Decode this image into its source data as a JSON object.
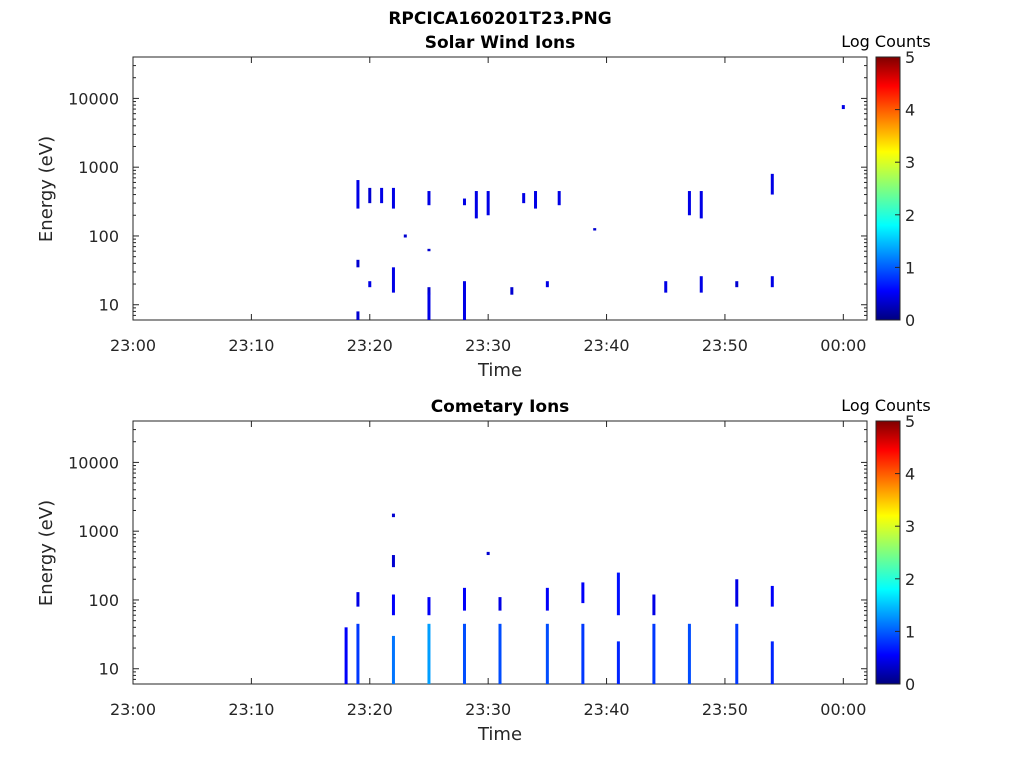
{
  "figure_title": "RPCICA160201T23.PNG",
  "chart_data": [
    {
      "type": "heatmap",
      "title": "Solar Wind Ions",
      "xlabel": "Time",
      "ylabel": "Energy (eV)",
      "yscale": "log",
      "xlim": [
        "23:00",
        "00:02"
      ],
      "ylim": [
        6,
        40000
      ],
      "xticks": [
        "23:00",
        "23:10",
        "23:20",
        "23:30",
        "23:40",
        "23:50",
        "00:00"
      ],
      "yticks": [
        "10",
        "100",
        "1000",
        "10000"
      ],
      "colorbar": {
        "label": "Log Counts",
        "range": [
          0,
          5
        ],
        "ticks": [
          "0",
          "1",
          "2",
          "3",
          "4",
          "5"
        ],
        "colormap": "jet"
      },
      "grid": false,
      "cells": [
        {
          "t": "23:19",
          "e": 6,
          "e2": 8,
          "c": 0.4
        },
        {
          "t": "23:19",
          "e": 35,
          "e2": 45,
          "c": 0.4
        },
        {
          "t": "23:19",
          "e": 250,
          "e2": 650,
          "c": 0.5
        },
        {
          "t": "23:20",
          "e": 18,
          "e2": 22,
          "c": 0.5
        },
        {
          "t": "23:20",
          "e": 300,
          "e2": 500,
          "c": 0.4
        },
        {
          "t": "23:21",
          "e": 300,
          "e2": 500,
          "c": 0.5
        },
        {
          "t": "23:22",
          "e": 15,
          "e2": 35,
          "c": 0.5
        },
        {
          "t": "23:22",
          "e": 250,
          "e2": 500,
          "c": 0.5
        },
        {
          "t": "23:23",
          "e": 95,
          "e2": 105,
          "c": 0.4
        },
        {
          "t": "23:25",
          "e": 14,
          "e2": 18,
          "c": 0.4
        },
        {
          "t": "23:25",
          "e": 280,
          "e2": 450,
          "c": 0.5
        },
        {
          "t": "23:25",
          "e": 6,
          "e2": 15,
          "c": 0.5
        },
        {
          "t": "23:25",
          "e": 60,
          "e2": 65,
          "c": 0.4
        },
        {
          "t": "23:28",
          "e": 6,
          "e2": 22,
          "c": 0.5
        },
        {
          "t": "23:28",
          "e": 280,
          "e2": 350,
          "c": 0.5
        },
        {
          "t": "23:29",
          "e": 180,
          "e2": 450,
          "c": 0.5
        },
        {
          "t": "23:30",
          "e": 200,
          "e2": 450,
          "c": 0.5
        },
        {
          "t": "23:32",
          "e": 14,
          "e2": 18,
          "c": 0.4
        },
        {
          "t": "23:33",
          "e": 300,
          "e2": 420,
          "c": 0.5
        },
        {
          "t": "23:34",
          "e": 250,
          "e2": 450,
          "c": 0.5
        },
        {
          "t": "23:35",
          "e": 18,
          "e2": 22,
          "c": 0.5
        },
        {
          "t": "23:36",
          "e": 280,
          "e2": 450,
          "c": 0.5
        },
        {
          "t": "23:39",
          "e": 120,
          "e2": 130,
          "c": 0.4
        },
        {
          "t": "23:45",
          "e": 15,
          "e2": 22,
          "c": 0.5
        },
        {
          "t": "23:47",
          "e": 200,
          "e2": 450,
          "c": 0.5
        },
        {
          "t": "23:48",
          "e": 15,
          "e2": 26,
          "c": 0.5
        },
        {
          "t": "23:48",
          "e": 180,
          "e2": 450,
          "c": 0.5
        },
        {
          "t": "23:51",
          "e": 18,
          "e2": 22,
          "c": 0.4
        },
        {
          "t": "23:54",
          "e": 18,
          "e2": 26,
          "c": 0.5
        },
        {
          "t": "23:54",
          "e": 400,
          "e2": 800,
          "c": 0.5
        },
        {
          "t": "00:00",
          "e": 7000,
          "e2": 8000,
          "c": 0.5
        }
      ]
    },
    {
      "type": "heatmap",
      "title": "Cometary Ions",
      "xlabel": "Time",
      "ylabel": "Energy (eV)",
      "yscale": "log",
      "xlim": [
        "23:00",
        "00:02"
      ],
      "ylim": [
        6,
        40000
      ],
      "xticks": [
        "23:00",
        "23:10",
        "23:20",
        "23:30",
        "23:40",
        "23:50",
        "00:00"
      ],
      "yticks": [
        "10",
        "100",
        "1000",
        "10000"
      ],
      "colorbar": {
        "label": "Log Counts",
        "range": [
          0,
          5
        ],
        "ticks": [
          "0",
          "1",
          "2",
          "3",
          "4",
          "5"
        ],
        "colormap": "jet"
      },
      "grid": false,
      "cells": [
        {
          "t": "23:18",
          "e": 6,
          "e2": 40,
          "c": 0.6
        },
        {
          "t": "23:19",
          "e": 6,
          "e2": 45,
          "c": 0.9
        },
        {
          "t": "23:19",
          "e": 80,
          "e2": 130,
          "c": 0.5
        },
        {
          "t": "23:22",
          "e": 6,
          "e2": 30,
          "c": 1.2
        },
        {
          "t": "23:22",
          "e": 60,
          "e2": 120,
          "c": 0.6
        },
        {
          "t": "23:22",
          "e": 300,
          "e2": 450,
          "c": 0.4
        },
        {
          "t": "23:25",
          "e": 6,
          "e2": 45,
          "c": 1.4
        },
        {
          "t": "23:25",
          "e": 60,
          "e2": 110,
          "c": 0.6
        },
        {
          "t": "23:28",
          "e": 6,
          "e2": 45,
          "c": 1.0
        },
        {
          "t": "23:28",
          "e": 70,
          "e2": 150,
          "c": 0.6
        },
        {
          "t": "23:31",
          "e": 6,
          "e2": 45,
          "c": 1.0
        },
        {
          "t": "23:31",
          "e": 70,
          "e2": 110,
          "c": 0.5
        },
        {
          "t": "23:35",
          "e": 6,
          "e2": 45,
          "c": 1.0
        },
        {
          "t": "23:35",
          "e": 70,
          "e2": 150,
          "c": 0.6
        },
        {
          "t": "23:38",
          "e": 6,
          "e2": 45,
          "c": 0.9
        },
        {
          "t": "23:38",
          "e": 90,
          "e2": 180,
          "c": 0.6
        },
        {
          "t": "23:41",
          "e": 6,
          "e2": 25,
          "c": 0.8
        },
        {
          "t": "23:41",
          "e": 60,
          "e2": 250,
          "c": 0.7
        },
        {
          "t": "23:44",
          "e": 6,
          "e2": 45,
          "c": 0.9
        },
        {
          "t": "23:44",
          "e": 60,
          "e2": 120,
          "c": 0.5
        },
        {
          "t": "23:47",
          "e": 6,
          "e2": 45,
          "c": 1.0
        },
        {
          "t": "23:51",
          "e": 6,
          "e2": 45,
          "c": 0.9
        },
        {
          "t": "23:51",
          "e": 80,
          "e2": 200,
          "c": 0.5
        },
        {
          "t": "23:54",
          "e": 6,
          "e2": 25,
          "c": 0.8
        },
        {
          "t": "23:54",
          "e": 80,
          "e2": 160,
          "c": 0.6
        },
        {
          "t": "23:22",
          "e": 1600,
          "e2": 1800,
          "c": 0.4
        },
        {
          "t": "23:30",
          "e": 450,
          "e2": 500,
          "c": 0.4
        }
      ]
    }
  ]
}
